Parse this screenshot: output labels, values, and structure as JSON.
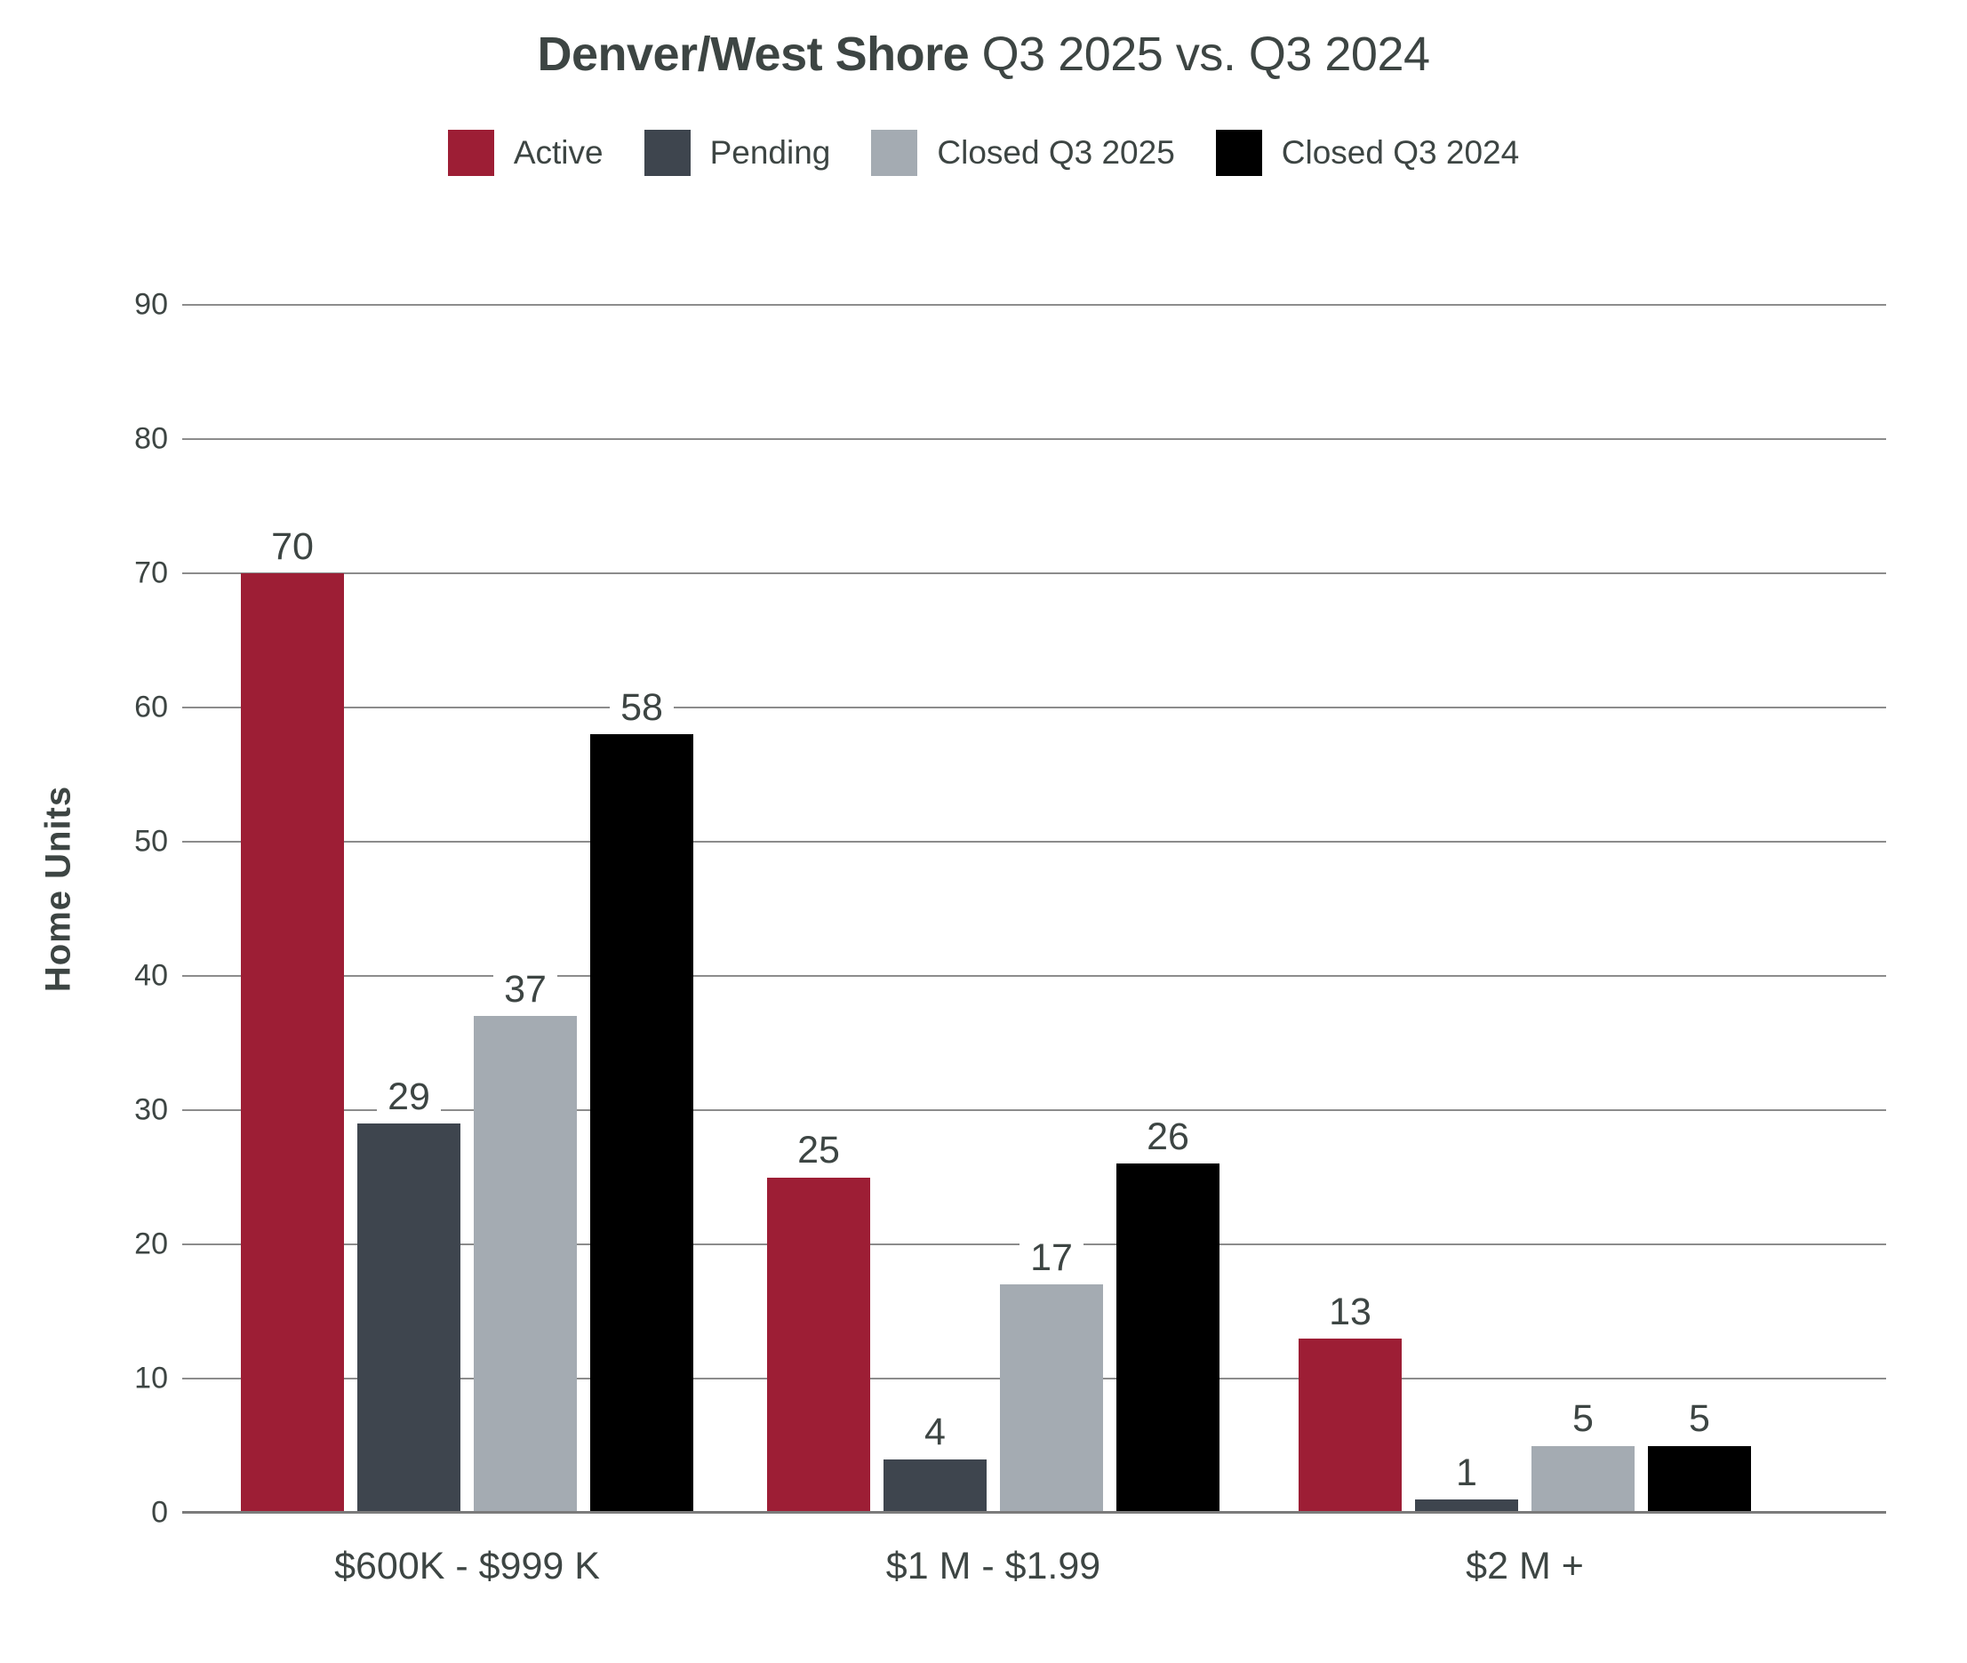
{
  "title": {
    "bold": "Denver/West Shore",
    "regular": " Q3 2025 vs. Q3 2024"
  },
  "chart_data": {
    "type": "bar",
    "title": "Denver/West Shore Q3 2025 vs. Q3 2024",
    "categories": [
      "$600K - $999 K",
      "$1 M - $1.99",
      "$2 M +"
    ],
    "series": [
      {
        "name": "Active",
        "color": "#9D1E35",
        "values": [
          70,
          25,
          13
        ]
      },
      {
        "name": "Pending",
        "color": "#3E454E",
        "values": [
          29,
          4,
          1
        ]
      },
      {
        "name": "Closed Q3 2025",
        "color": "#A4ABB2",
        "values": [
          37,
          17,
          5
        ]
      },
      {
        "name": "Closed Q3 2024",
        "color": "#000000",
        "values": [
          58,
          26,
          5
        ]
      }
    ],
    "xlabel": "",
    "ylabel": "Home Units",
    "ylim": [
      0,
      90
    ],
    "yticks": [
      0,
      10,
      20,
      30,
      40,
      50,
      60,
      70,
      80,
      90
    ],
    "grid": true,
    "legend_position": "top",
    "colors": {
      "text": "#3d4543",
      "gridline": "#8c8c8c",
      "baseline": "#7b7b7b",
      "background": "#ffffff"
    }
  }
}
